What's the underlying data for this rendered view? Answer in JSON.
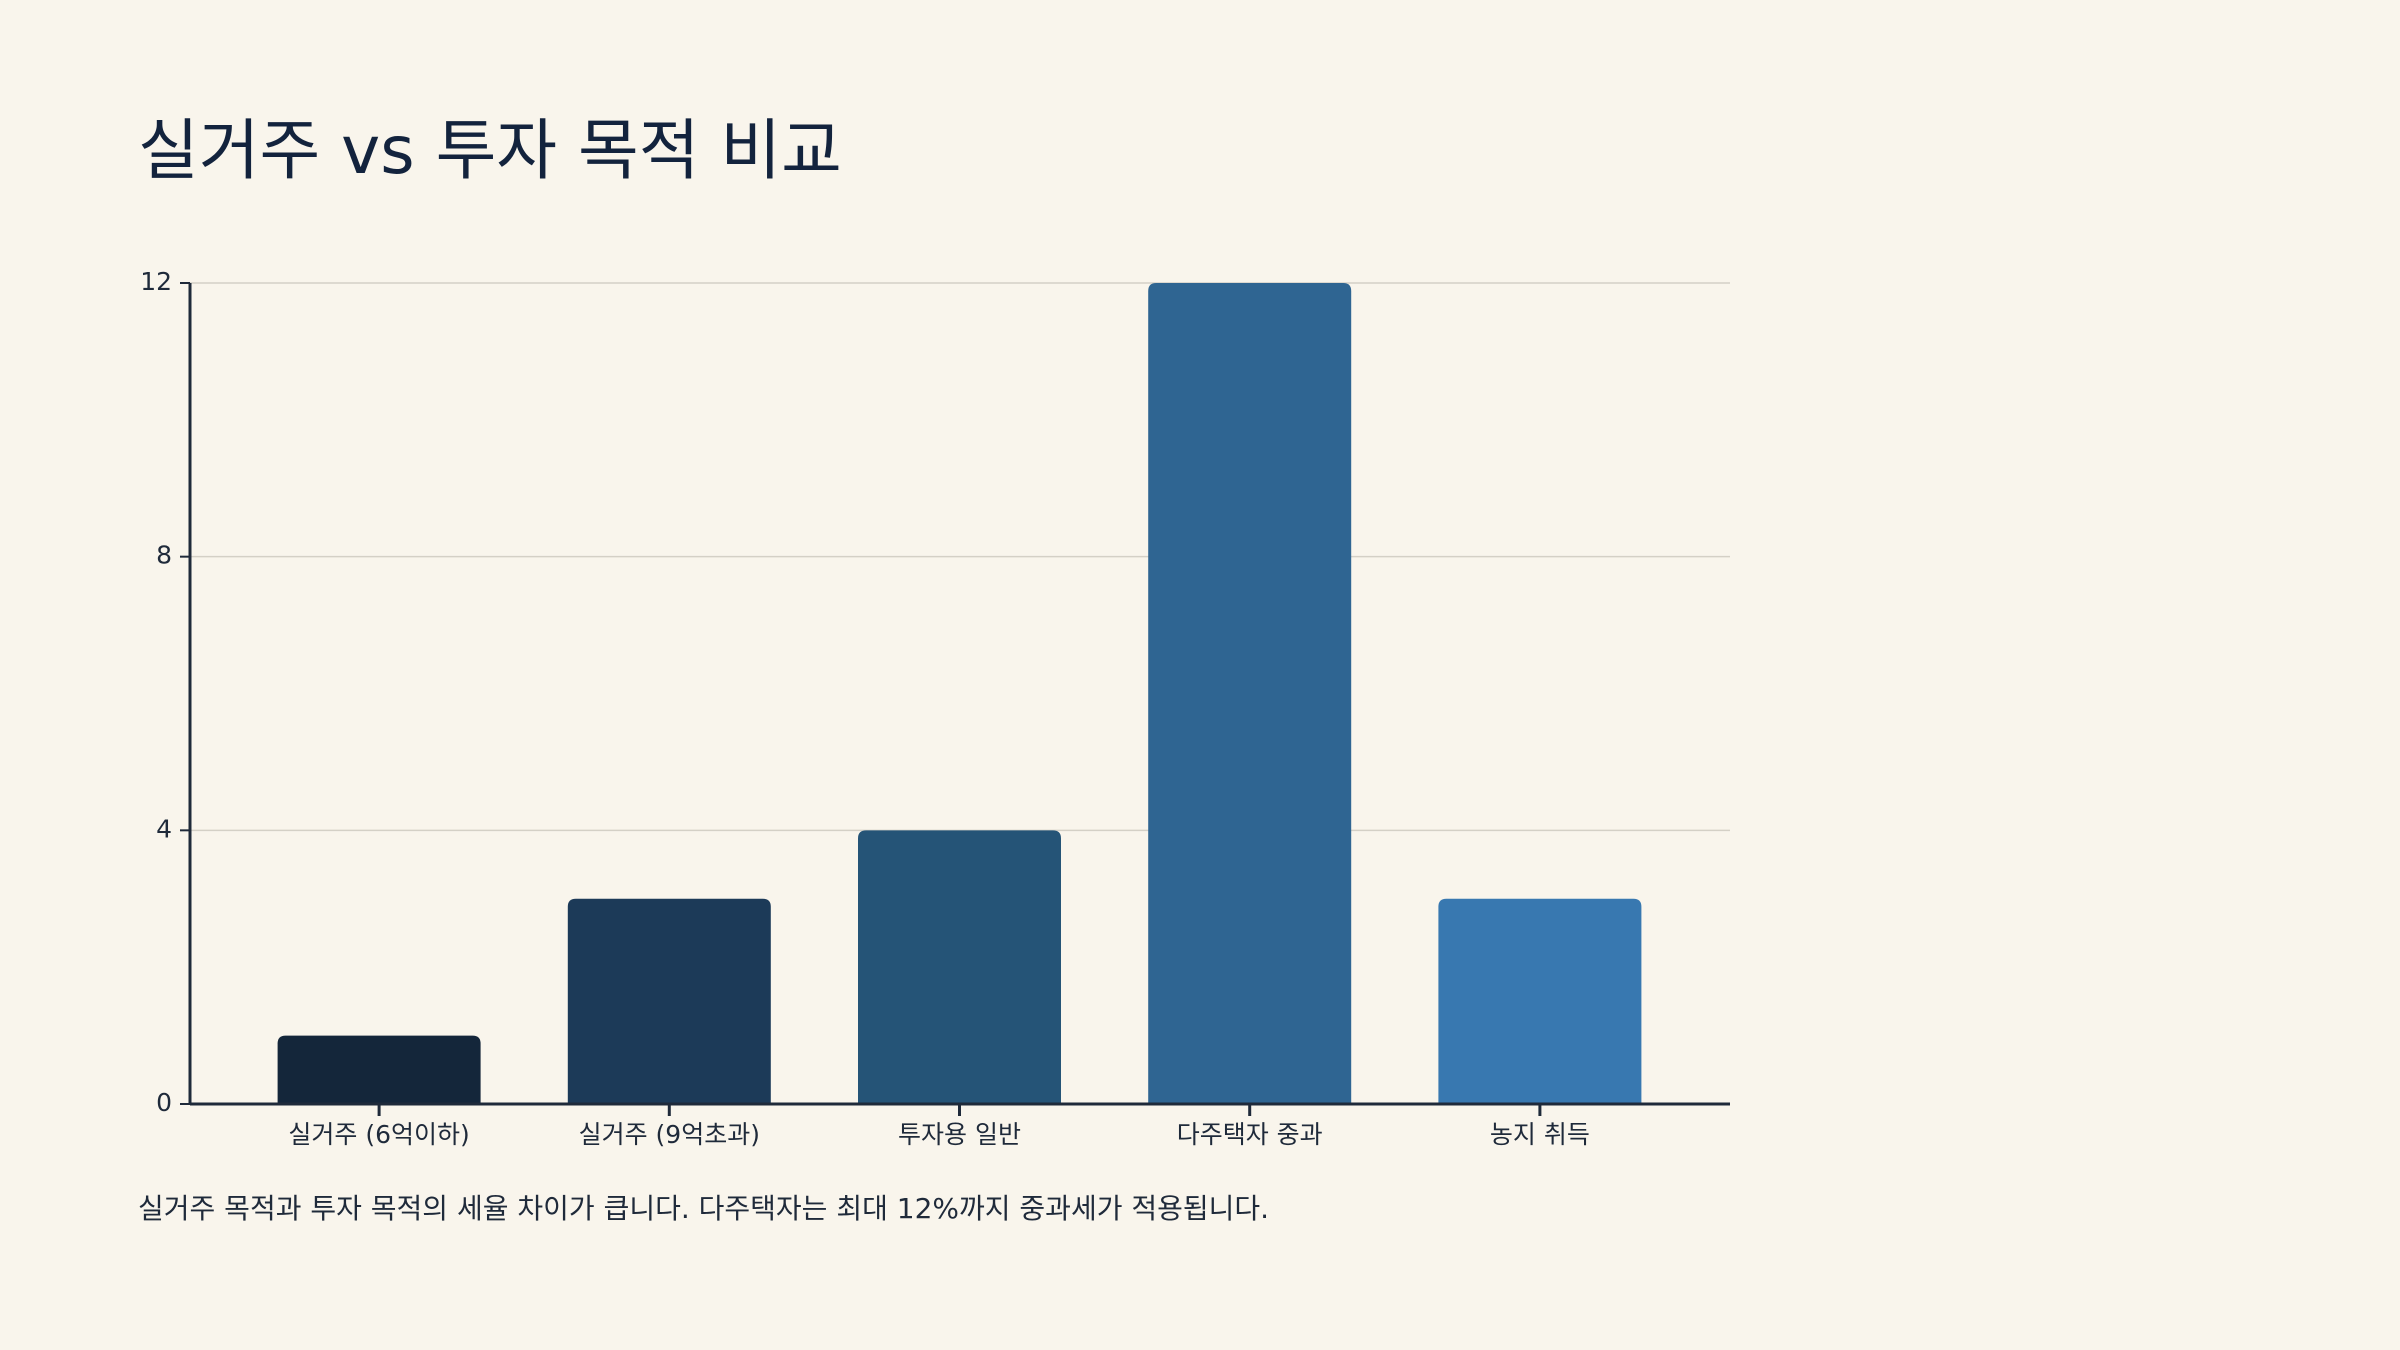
{
  "chart_data": {
    "type": "bar",
    "title": "실거주 vs 투자 목적 비교",
    "categories": [
      "실거주 (6억이하)",
      "실거주 (9억초과)",
      "투자용 일반",
      "다주택자 중과",
      "농지 취득"
    ],
    "values": [
      1,
      3,
      4,
      12,
      3
    ],
    "colors": [
      "#14263a",
      "#1c3a58",
      "#255477",
      "#2f6592",
      "#3878b0"
    ],
    "ylim": [
      0,
      12
    ],
    "yticks": [
      0,
      4,
      8,
      12
    ],
    "grid": true,
    "caption": "실거주 목적과 투자 목적의 세율 차이가 큽니다. 다주택자는 최대 12%까지 중과세가 적용됩니다."
  }
}
